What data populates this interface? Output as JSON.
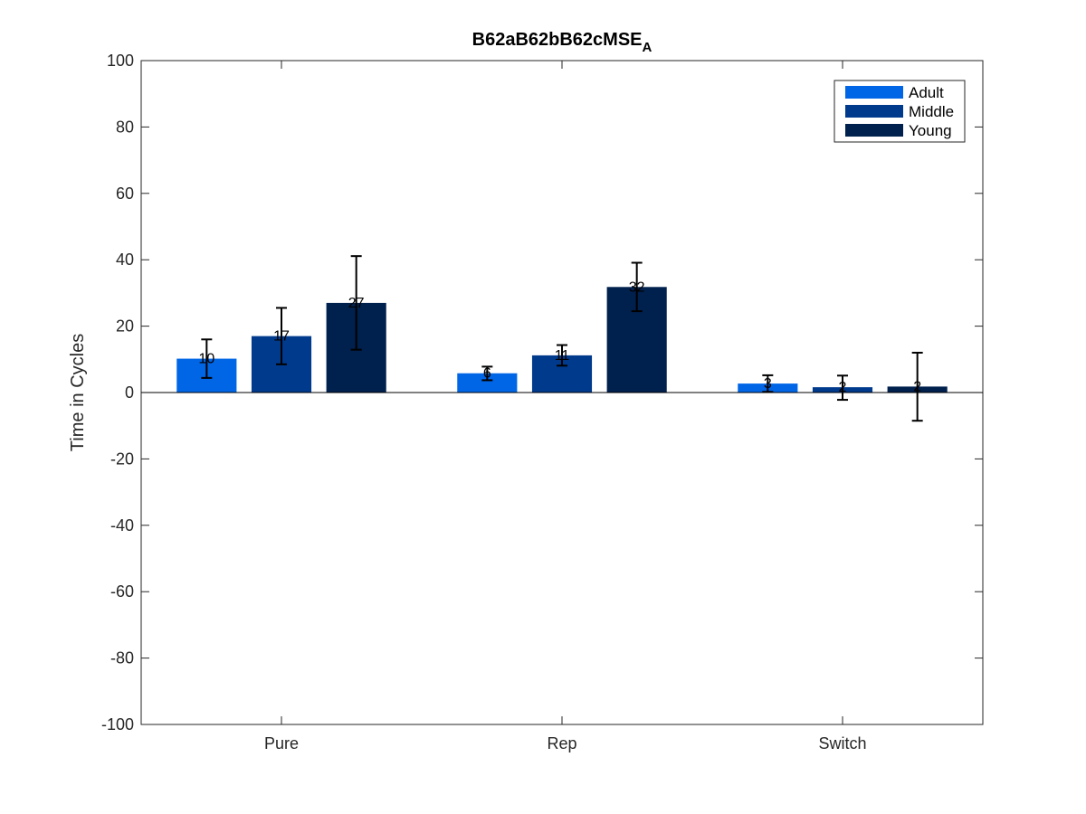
{
  "chart_data": {
    "type": "bar",
    "title": "B62aB62bB62cMSE",
    "title_subscript": "A",
    "xlabel": "",
    "ylabel": "Time in Cycles",
    "categories": [
      "Pure",
      "Rep",
      "Switch"
    ],
    "ylim": [
      -100,
      100
    ],
    "yticks": [
      -100,
      -80,
      -60,
      -40,
      -20,
      0,
      20,
      40,
      60,
      80,
      100
    ],
    "grid": false,
    "legend_position": "top-right",
    "series": [
      {
        "name": "Adult",
        "color": "#0066e6",
        "values": [
          10.2,
          5.8,
          2.7
        ],
        "labels": [
          "10",
          "6",
          "3"
        ],
        "error_low": [
          4.4,
          3.7,
          0.2
        ],
        "error_high": [
          16.0,
          7.8,
          5.2
        ]
      },
      {
        "name": "Middle",
        "color": "#003a8c",
        "values": [
          17.0,
          11.2,
          1.6
        ],
        "labels": [
          "17",
          "11",
          "2"
        ],
        "error_low": [
          8.5,
          8.1,
          -2.2
        ],
        "error_high": [
          25.5,
          14.3,
          5.1
        ]
      },
      {
        "name": "Young",
        "color": "#00204d",
        "values": [
          27.0,
          31.8,
          1.8
        ],
        "labels": [
          "27",
          "32",
          "2"
        ],
        "error_low": [
          12.9,
          24.5,
          -8.5
        ],
        "error_high": [
          41.1,
          39.1,
          12.0
        ]
      }
    ]
  }
}
